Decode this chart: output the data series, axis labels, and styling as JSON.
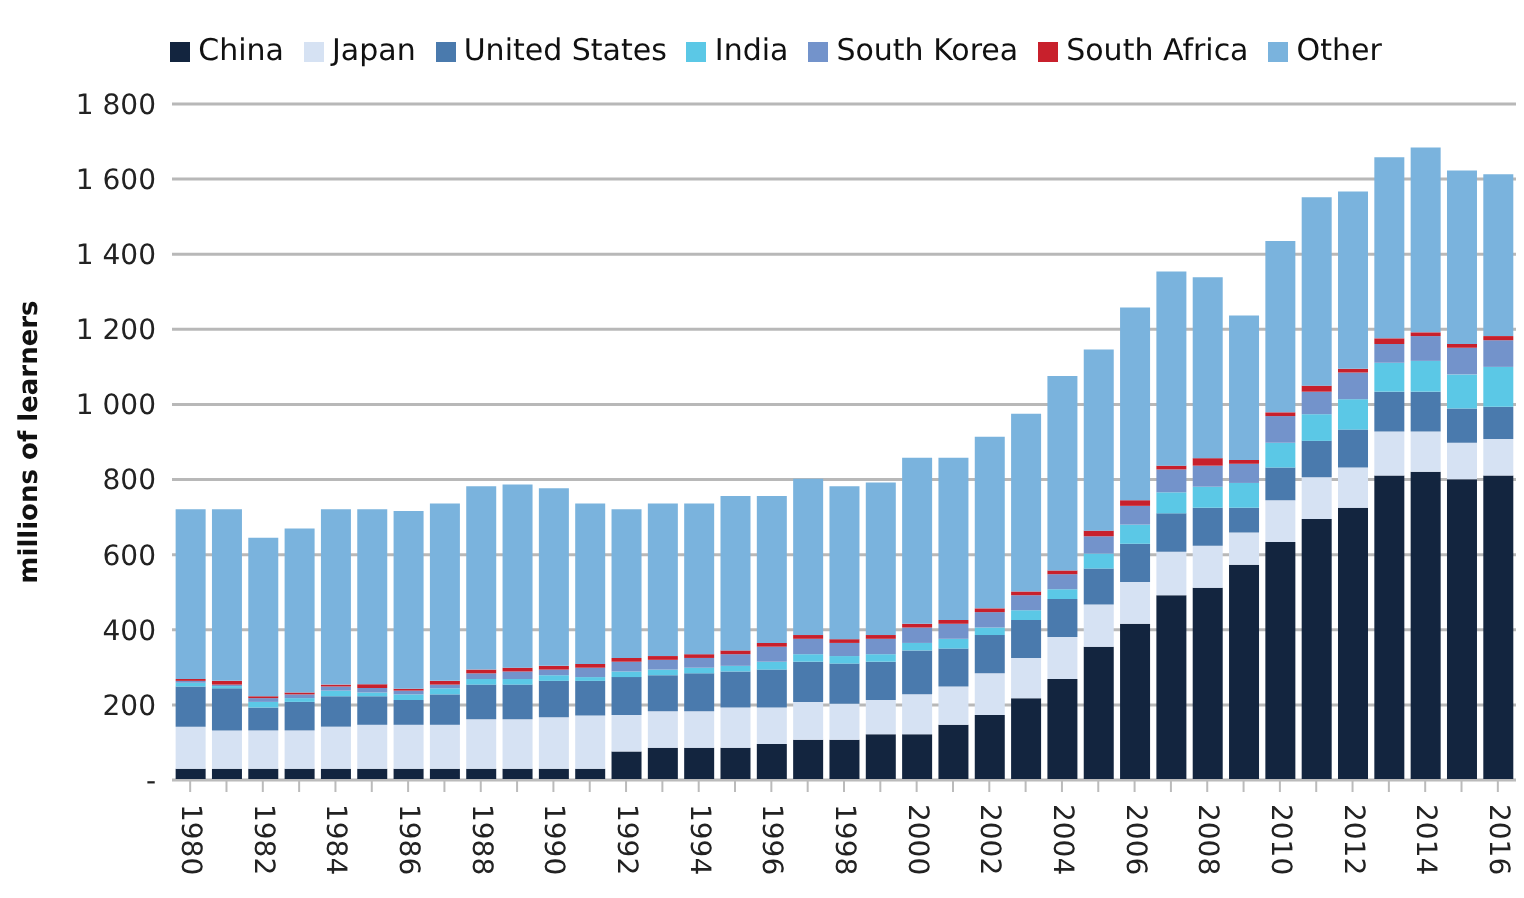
{
  "chart_data": {
    "type": "bar",
    "stacked": true,
    "ylabel": "millions of learners",
    "categories": [
      "1980",
      null,
      "1982",
      null,
      "1984",
      null,
      "1986",
      null,
      "1988",
      null,
      "1990",
      null,
      "1992",
      null,
      "1994",
      null,
      "1996",
      null,
      "1998",
      null,
      "2000",
      null,
      "2002",
      null,
      "2004",
      null,
      "2006",
      null,
      "2008",
      null,
      "2010",
      null,
      "2012",
      null,
      "2014",
      null,
      "2016"
    ],
    "series": [
      {
        "name": "China",
        "color": "#13253f",
        "values": [
          30,
          30,
          30,
          30,
          30,
          30,
          30,
          30,
          30,
          30,
          30,
          30,
          76,
          86,
          86,
          86,
          96,
          107,
          107,
          122,
          122,
          147,
          173,
          218,
          269,
          355,
          416,
          492,
          512,
          573,
          634,
          695,
          725,
          811,
          821,
          801,
          811
        ]
      },
      {
        "name": "Japan",
        "color": "#d6e2f3",
        "values": [
          112,
          102,
          102,
          102,
          112,
          117,
          117,
          117,
          132,
          132,
          137,
          142,
          97,
          97,
          97,
          107,
          97,
          101,
          96,
          91,
          106,
          102,
          111,
          107,
          112,
          112,
          111,
          116,
          112,
          86,
          111,
          111,
          107,
          117,
          107,
          97,
          97
        ]
      },
      {
        "name": "United States",
        "color": "#4a7aad",
        "values": [
          107,
          112,
          61,
          76,
          81,
          76,
          66,
          81,
          92,
          92,
          97,
          92,
          101,
          96,
          101,
          96,
          101,
          107,
          107,
          102,
          117,
          101,
          102,
          101,
          101,
          96,
          102,
          102,
          101,
          66,
          87,
          97,
          101,
          106,
          106,
          91,
          86
        ]
      },
      {
        "name": "India",
        "color": "#5bc8e6",
        "values": [
          10,
          6,
          15,
          10,
          15,
          10,
          15,
          16,
          15,
          15,
          15,
          10,
          15,
          15,
          15,
          15,
          21,
          20,
          20,
          20,
          20,
          26,
          20,
          26,
          26,
          40,
          51,
          56,
          56,
          66,
          66,
          71,
          81,
          77,
          82,
          91,
          106
        ]
      },
      {
        "name": "South Korea",
        "color": "#7393cb",
        "values": [
          5,
          4,
          10,
          10,
          11,
          12,
          10,
          10,
          15,
          20,
          15,
          25,
          26,
          26,
          26,
          31,
          40,
          41,
          35,
          41,
          41,
          40,
          41,
          40,
          40,
          46,
          50,
          61,
          56,
          51,
          71,
          60,
          71,
          50,
          66,
          71,
          71
        ]
      },
      {
        "name": "South Africa",
        "color": "#c8202c",
        "values": [
          5,
          10,
          5,
          5,
          5,
          10,
          5,
          10,
          10,
          10,
          10,
          10,
          10,
          10,
          10,
          10,
          10,
          10,
          10,
          10,
          10,
          10,
          10,
          10,
          10,
          15,
          15,
          10,
          20,
          10,
          10,
          16,
          10,
          15,
          10,
          10,
          11
        ]
      },
      {
        "name": "Other",
        "color": "#7ab3dd",
        "values": [
          452,
          457,
          422,
          437,
          467,
          466,
          473,
          472,
          488,
          488,
          473,
          427,
          396,
          406,
          401,
          411,
          391,
          416,
          407,
          406,
          442,
          432,
          457,
          473,
          518,
          482,
          513,
          517,
          482,
          385,
          456,
          502,
          472,
          482,
          492,
          462,
          431
        ]
      }
    ],
    "ylim": [
      0,
      1800
    ],
    "yticks": [
      {
        "value": 0,
        "label": "-"
      },
      {
        "value": 200,
        "label": "200"
      },
      {
        "value": 400,
        "label": "400"
      },
      {
        "value": 600,
        "label": "600"
      },
      {
        "value": 800,
        "label": "800"
      },
      {
        "value": 1000,
        "label": "1 000"
      },
      {
        "value": 1200,
        "label": "1 200"
      },
      {
        "value": 1400,
        "label": "1 400"
      },
      {
        "value": 1600,
        "label": "1 600"
      },
      {
        "value": 1800,
        "label": "1 800"
      }
    ],
    "grid": "y",
    "legend": "top"
  }
}
